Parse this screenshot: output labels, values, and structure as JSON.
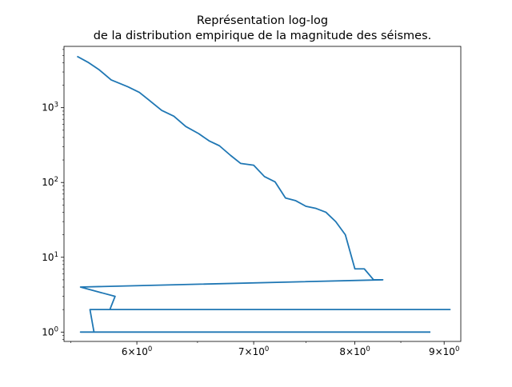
{
  "chart_data": {
    "type": "line",
    "title": "Représentation log-log\nde la distribution empirique de la magnitude des séismes.",
    "xlabel": "",
    "ylabel": "",
    "xscale": "log",
    "yscale": "log",
    "xlim": [
      5.45,
      9.2
    ],
    "ylim": [
      0.75,
      6600
    ],
    "grid": false,
    "x_ticks": [
      {
        "base": "6",
        "exp": "0",
        "value": 6
      },
      {
        "base": "7",
        "exp": "0",
        "value": 7
      },
      {
        "base": "8",
        "exp": "0",
        "value": 8
      },
      {
        "base": "9",
        "exp": "0",
        "value": 9
      }
    ],
    "y_ticks": [
      {
        "base": "10",
        "exp": "0",
        "value": 1
      },
      {
        "base": "10",
        "exp": "1",
        "value": 10
      },
      {
        "base": "10",
        "exp": "2",
        "value": 100
      },
      {
        "base": "10",
        "exp": "3",
        "value": 1000
      }
    ],
    "series": [
      {
        "name": "",
        "color": "#1f77b4",
        "x": [
          5.55,
          5.63,
          5.71,
          5.8,
          5.93,
          6.02,
          6.1,
          6.2,
          6.3,
          6.4,
          6.51,
          6.6,
          6.69,
          6.79,
          6.88,
          7.0,
          7.1,
          7.2,
          7.3,
          7.4,
          7.5,
          7.6,
          7.7,
          7.8,
          7.9,
          8.0,
          8.1,
          8.2,
          8.3,
          5.57,
          5.83,
          5.79,
          5.65,
          6.39,
          9.07,
          5.64,
          5.67,
          5.57,
          8.83
        ],
        "y": [
          4800,
          4000,
          3200,
          2350,
          1900,
          1600,
          1250,
          920,
          770,
          560,
          450,
          360,
          310,
          230,
          180,
          170,
          120,
          102,
          62,
          57,
          48,
          45,
          40,
          30,
          20,
          7,
          7,
          5,
          5,
          4,
          3,
          2,
          2,
          2,
          2,
          2,
          1,
          1,
          1
        ]
      }
    ]
  }
}
